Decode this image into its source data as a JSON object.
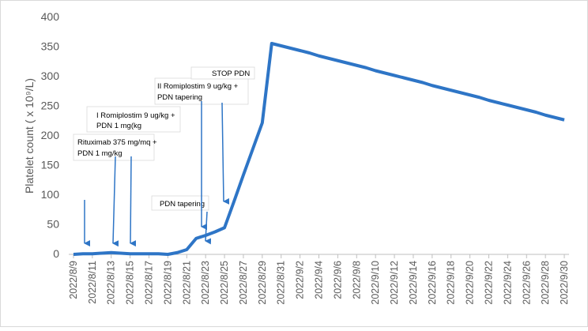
{
  "chart_data": {
    "type": "line",
    "y_label": "Platelet count ( x 10⁹/L)",
    "categories": [
      "2022/8/9",
      null,
      "2022/8/11",
      null,
      "2022/8/13",
      null,
      "2022/8/15",
      null,
      "2022/8/17",
      null,
      "2022/8/19",
      null,
      "2022/8/21",
      null,
      "2022/8/23",
      null,
      "2022/8/25",
      null,
      "2022/8/27",
      null,
      "2022/8/29",
      null,
      "2022/8/31",
      null,
      "2022/9/2",
      null,
      "2022/9/4",
      null,
      "2022/9/6",
      null,
      "2022/9/8",
      null,
      "2022/9/10",
      null,
      "2022/9/12",
      null,
      "2022/9/14",
      null,
      "2022/9/16",
      null,
      "2022/9/18",
      null,
      "2022/9/20",
      null,
      "2022/9/22",
      null,
      "2022/9/24",
      null,
      "2022/9/26",
      null,
      "2022/9/28",
      null,
      "2022/9/30"
    ],
    "values": [
      0,
      1,
      1,
      2,
      3,
      2,
      1,
      1,
      1,
      1,
      0,
      3,
      8,
      27,
      32,
      38,
      45,
      89,
      134,
      178,
      222,
      356,
      352,
      348,
      344,
      340,
      335,
      331,
      327,
      323,
      319,
      315,
      310,
      306,
      302,
      298,
      294,
      290,
      285,
      281,
      277,
      273,
      269,
      265,
      260,
      256,
      252,
      248,
      244,
      240,
      235,
      231,
      227
    ],
    "color": "#2e75c6",
    "ylim": [
      0,
      400
    ],
    "yticks": [
      0,
      50,
      100,
      150,
      200,
      250,
      300,
      350,
      400
    ],
    "grid": false,
    "annotations": [
      {
        "lines": [
          "Rituximab 375 mg/mq +",
          "PDN 1 mg/kg"
        ]
      },
      {
        "lines": [
          "I Romiplostim 9 ug/kg +",
          "PDN 1 mg(kg"
        ]
      },
      {
        "lines": [
          "PDN tapering"
        ]
      },
      {
        "lines": [
          "II Romiplostim 9 ug/kg +",
          "PDN tapering"
        ]
      },
      {
        "lines": [
          "STOP PDN"
        ]
      }
    ]
  }
}
